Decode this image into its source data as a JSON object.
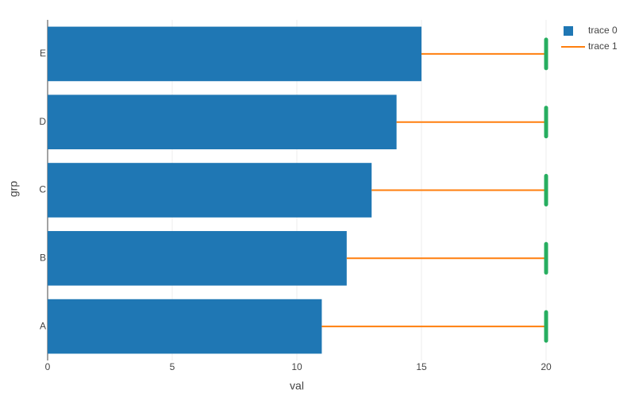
{
  "chart_data": {
    "type": "bar_dumbbell",
    "orientation": "h",
    "categories": [
      "A",
      "B",
      "C",
      "D",
      "E"
    ],
    "series": [
      {
        "name": "trace 0",
        "color": "#1f77b4",
        "values": [
          11,
          12,
          13,
          14,
          15
        ]
      },
      {
        "name": "trace 1",
        "color": "#ff7f0e",
        "marker_color": "#27ae60",
        "values": [
          20,
          20,
          20,
          20,
          20
        ]
      }
    ],
    "xlabel": "val",
    "ylabel": "grp",
    "xlim": [
      0,
      20
    ],
    "xticks": [
      0,
      5,
      10,
      15,
      20
    ],
    "grid": true,
    "legend": "top-right"
  }
}
